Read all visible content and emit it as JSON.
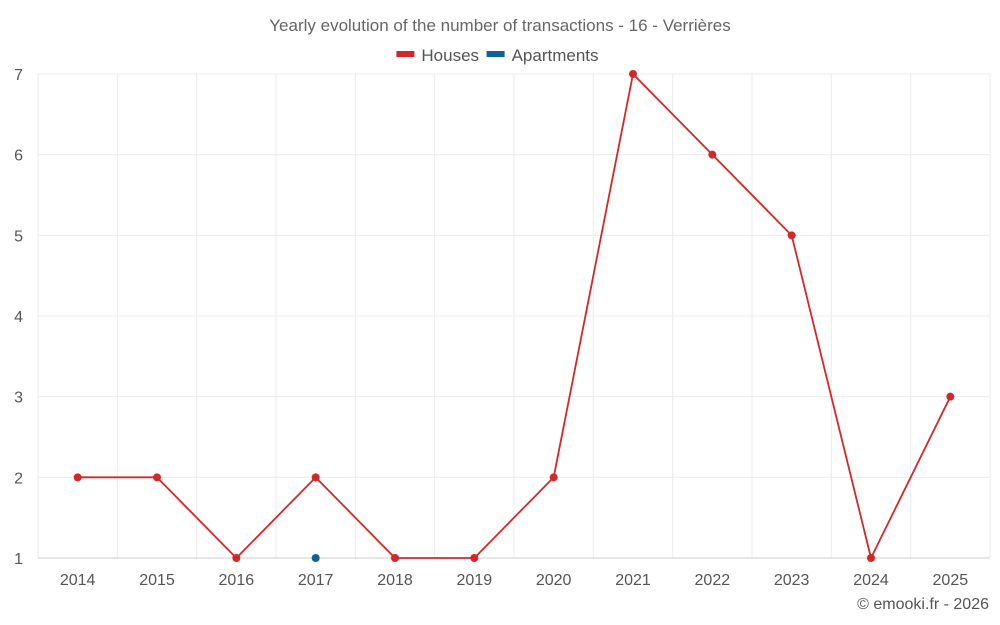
{
  "chart_data": {
    "type": "line",
    "title": "Yearly evolution of the number of transactions - 16 - Verrières",
    "categories": [
      "2014",
      "2015",
      "2016",
      "2017",
      "2018",
      "2019",
      "2020",
      "2021",
      "2022",
      "2023",
      "2024",
      "2025"
    ],
    "ylim": [
      1,
      7
    ],
    "yticks": [
      1,
      2,
      3,
      4,
      5,
      6,
      7
    ],
    "grid": true,
    "legend_position": "top-center",
    "series": [
      {
        "name": "Houses",
        "color": "#d62728",
        "values": [
          2,
          2,
          1,
          2,
          1,
          1,
          2,
          7,
          6,
          5,
          1,
          3
        ]
      },
      {
        "name": "Apartments",
        "color": "#0a6496",
        "values": [
          null,
          null,
          null,
          1,
          null,
          null,
          null,
          null,
          null,
          null,
          null,
          null
        ]
      }
    ],
    "xlabel": "",
    "ylabel": ""
  },
  "footer": {
    "credit": "© emooki.fr - 2026"
  }
}
